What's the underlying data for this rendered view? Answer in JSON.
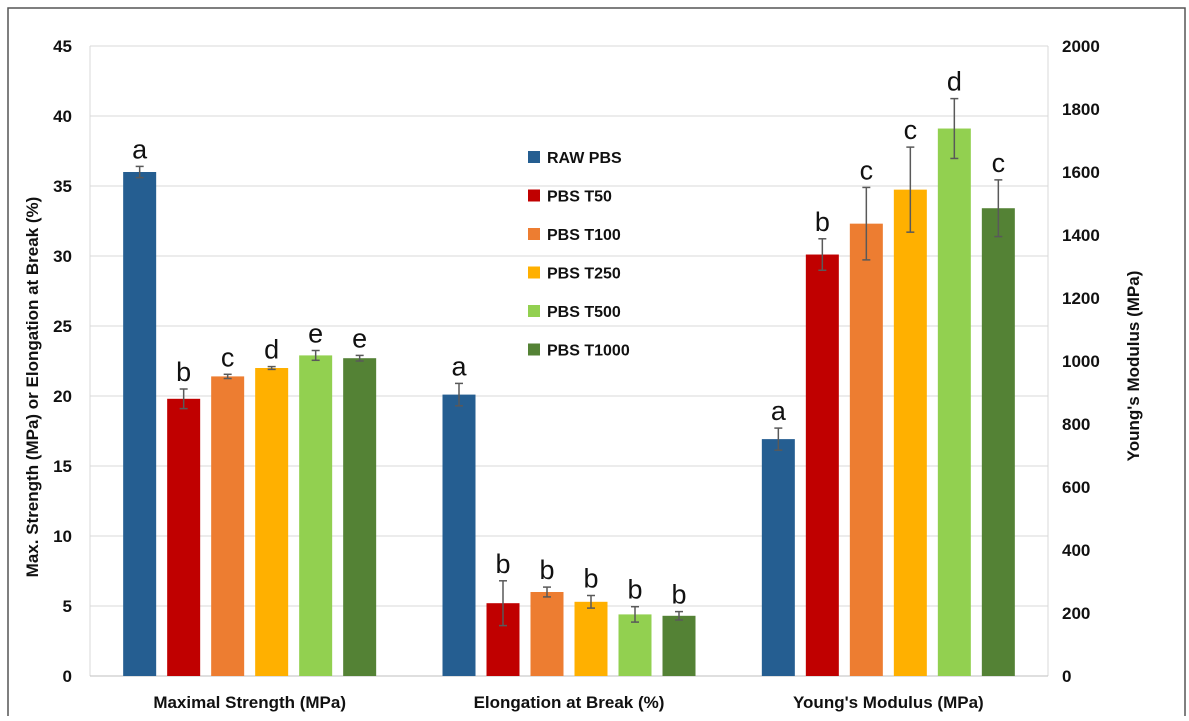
{
  "chart_data": {
    "type": "bar",
    "categories": [
      "Maximal Strength (MPa)",
      "Elongation at Break (%)",
      "Young's Modulus (MPa)"
    ],
    "left_axis": {
      "label": "Max. Strength (MPa) or Elongation at Break (%)",
      "min": 0,
      "max": 45,
      "step": 5,
      "ticks": [
        "0",
        "5",
        "10",
        "15",
        "20",
        "25",
        "30",
        "35",
        "40",
        "45"
      ]
    },
    "right_axis": {
      "label": "Young's Modulus (MPa)",
      "min": 0,
      "max": 2000,
      "step": 200,
      "ticks": [
        "0",
        "200",
        "400",
        "600",
        "800",
        "1000",
        "1200",
        "1400",
        "1600",
        "1800",
        "2000"
      ]
    },
    "category_axis": [
      "left",
      "left",
      "right"
    ],
    "grid": true,
    "legend_position": "center",
    "series": [
      {
        "name": "RAW PBS",
        "color": "#255E91",
        "values": [
          36.0,
          20.1,
          752
        ],
        "errors": [
          0.4,
          0.8,
          35
        ],
        "letters": [
          "a",
          "a",
          "a"
        ]
      },
      {
        "name": "PBS T50",
        "color": "#C00000",
        "values": [
          19.8,
          5.2,
          1338
        ],
        "errors": [
          0.7,
          1.6,
          50
        ],
        "letters": [
          "b",
          "b",
          "b"
        ]
      },
      {
        "name": "PBS T100",
        "color": "#ED7D31",
        "values": [
          21.4,
          6.0,
          1436
        ],
        "errors": [
          0.15,
          0.35,
          115
        ],
        "letters": [
          "c",
          "b",
          "c"
        ]
      },
      {
        "name": "PBS T250",
        "color": "#FFB000",
        "values": [
          22.0,
          5.3,
          1544
        ],
        "errors": [
          0.1,
          0.45,
          135
        ],
        "letters": [
          "d",
          "b",
          "c"
        ]
      },
      {
        "name": "PBS T500",
        "color": "#92D050",
        "values": [
          22.9,
          4.4,
          1738
        ],
        "errors": [
          0.35,
          0.55,
          95
        ],
        "letters": [
          "e",
          "b",
          "d"
        ]
      },
      {
        "name": "PBS T1000",
        "color": "#548235",
        "values": [
          22.7,
          4.3,
          1485
        ],
        "errors": [
          0.2,
          0.3,
          90
        ],
        "letters": [
          "e",
          "b",
          "c"
        ]
      }
    ]
  }
}
